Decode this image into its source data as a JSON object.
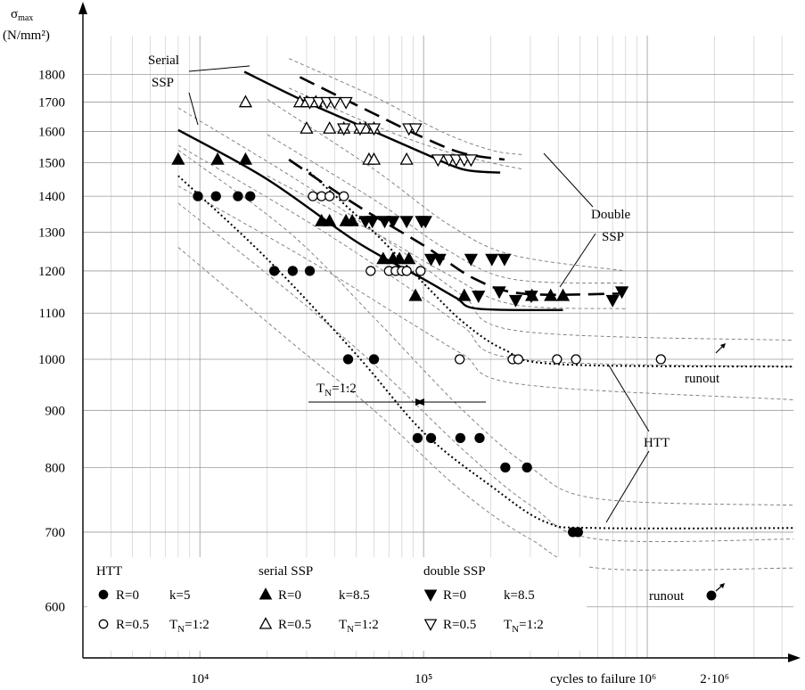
{
  "chart_data": {
    "type": "scatter",
    "y_axis": {
      "label": "σmax",
      "unit": "(N/mm²)",
      "scale": "log",
      "range": [
        540,
        1950
      ],
      "ticks": [
        600,
        700,
        800,
        900,
        1000,
        1100,
        1200,
        1300,
        1400,
        1500,
        1600,
        1700,
        1800
      ]
    },
    "x_axis": {
      "label": "cycles to failure",
      "scale": "log",
      "range": [
        3000,
        4500000
      ],
      "ticks": [
        {
          "value": 10000,
          "label": "10⁴"
        },
        {
          "value": 100000,
          "label": "10⁵"
        },
        {
          "value": 1000000,
          "label": "10⁶"
        },
        {
          "value": 2000000,
          "label": "2·10⁶"
        }
      ]
    },
    "grid": true,
    "series": [
      {
        "group": "HTT",
        "marker": "filled-circle",
        "points": [
          [
            9800,
            1400
          ],
          [
            11800,
            1400
          ],
          [
            14800,
            1400
          ],
          [
            16800,
            1400
          ],
          [
            21500,
            1200
          ],
          [
            26000,
            1200
          ],
          [
            31000,
            1200
          ],
          [
            46000,
            1000
          ],
          [
            60000,
            1000
          ],
          [
            94000,
            850
          ],
          [
            108000,
            850
          ],
          [
            146000,
            850
          ],
          [
            178000,
            850
          ],
          [
            232000,
            800
          ],
          [
            290000,
            800
          ],
          [
            465000,
            700
          ],
          [
            490000,
            700
          ]
        ]
      },
      {
        "group": "HTT",
        "marker": "open-circle",
        "points": [
          [
            32000,
            1400
          ],
          [
            35000,
            1400
          ],
          [
            38000,
            1400
          ],
          [
            44000,
            1400
          ],
          [
            58000,
            1200
          ],
          [
            70000,
            1200
          ],
          [
            75000,
            1200
          ],
          [
            80000,
            1200
          ],
          [
            84000,
            1200
          ],
          [
            97000,
            1200
          ],
          [
            145000,
            1000
          ],
          [
            250000,
            1000
          ],
          [
            265000,
            1000
          ],
          [
            395000,
            1000
          ],
          [
            480000,
            1000
          ],
          [
            1150000,
            1000
          ]
        ]
      },
      {
        "group": "serial SSP",
        "marker": "filled-triangle-up",
        "points": [
          [
            8000,
            1510
          ],
          [
            12000,
            1510
          ],
          [
            16000,
            1510
          ],
          [
            35000,
            1330
          ],
          [
            38000,
            1330
          ],
          [
            45000,
            1330
          ],
          [
            48000,
            1330
          ],
          [
            66000,
            1230
          ],
          [
            73000,
            1230
          ],
          [
            78000,
            1230
          ],
          [
            86000,
            1230
          ],
          [
            92000,
            1140
          ],
          [
            152000,
            1140
          ],
          [
            305000,
            1140
          ],
          [
            370000,
            1140
          ],
          [
            420000,
            1140
          ]
        ]
      },
      {
        "group": "serial SSP",
        "marker": "open-triangle-up",
        "points": [
          [
            16000,
            1700
          ],
          [
            28000,
            1700
          ],
          [
            30000,
            1700
          ],
          [
            33000,
            1700
          ],
          [
            30000,
            1610
          ],
          [
            38000,
            1610
          ],
          [
            44000,
            1610
          ],
          [
            52000,
            1610
          ],
          [
            55000,
            1610
          ],
          [
            60000,
            1610
          ],
          [
            57000,
            1510
          ],
          [
            60000,
            1510
          ],
          [
            84000,
            1510
          ]
        ]
      },
      {
        "group": "double SSP",
        "marker": "filled-triangle-down",
        "points": [
          [
            55000,
            1330
          ],
          [
            59000,
            1330
          ],
          [
            67000,
            1330
          ],
          [
            73000,
            1330
          ],
          [
            84000,
            1330
          ],
          [
            98000,
            1330
          ],
          [
            102000,
            1330
          ],
          [
            108000,
            1230
          ],
          [
            118000,
            1230
          ],
          [
            163000,
            1230
          ],
          [
            202000,
            1230
          ],
          [
            230000,
            1230
          ],
          [
            176000,
            1140
          ],
          [
            218000,
            1150
          ],
          [
            258000,
            1130
          ],
          [
            303000,
            1140
          ],
          [
            700000,
            1130
          ],
          [
            770000,
            1150
          ]
        ]
      },
      {
        "group": "double SSP",
        "marker": "open-triangle-down",
        "points": [
          [
            31000,
            1700
          ],
          [
            34000,
            1700
          ],
          [
            37000,
            1700
          ],
          [
            40000,
            1700
          ],
          [
            45000,
            1700
          ],
          [
            44000,
            1610
          ],
          [
            52000,
            1610
          ],
          [
            60000,
            1610
          ],
          [
            86000,
            1610
          ],
          [
            92000,
            1610
          ],
          [
            116000,
            1510
          ],
          [
            130000,
            1510
          ],
          [
            140000,
            1510
          ],
          [
            152000,
            1510
          ],
          [
            163000,
            1510
          ]
        ]
      }
    ],
    "curves": [
      {
        "name": "serial-ssp-mean",
        "style": "solid",
        "points": [
          [
            8000,
            1605
          ],
          [
            20000,
            1450
          ],
          [
            50000,
            1275
          ],
          [
            100000,
            1180
          ],
          [
            140000,
            1135
          ],
          [
            175000,
            1110
          ],
          [
            420000,
            1107
          ]
        ]
      },
      {
        "name": "serial-ssp-upper",
        "style": "solid",
        "points": [
          [
            15800,
            1810
          ],
          [
            30000,
            1700
          ],
          [
            60000,
            1600
          ],
          [
            100000,
            1530
          ],
          [
            150000,
            1480
          ],
          [
            220000,
            1470
          ]
        ]
      },
      {
        "name": "double-ssp-mean",
        "style": "dashed",
        "points": [
          [
            25000,
            1510
          ],
          [
            50000,
            1375
          ],
          [
            100000,
            1265
          ],
          [
            170000,
            1180
          ],
          [
            280000,
            1145
          ],
          [
            750000,
            1145
          ]
        ]
      },
      {
        "name": "double-ssp-upper",
        "style": "dashed",
        "points": [
          [
            28000,
            1790
          ],
          [
            60000,
            1660
          ],
          [
            100000,
            1580
          ],
          [
            150000,
            1530
          ],
          [
            230000,
            1510
          ]
        ]
      },
      {
        "name": "htt-mean-0.5",
        "style": "dotted",
        "points": [
          [
            30000,
            1480
          ],
          [
            60000,
            1300
          ],
          [
            100000,
            1170
          ],
          [
            150000,
            1080
          ],
          [
            230000,
            1020
          ],
          [
            400000,
            990
          ],
          [
            4500000,
            985
          ]
        ]
      },
      {
        "name": "htt-mean-0",
        "style": "dotted",
        "points": [
          [
            8000,
            1460
          ],
          [
            20000,
            1230
          ],
          [
            50000,
            1010
          ],
          [
            100000,
            860
          ],
          [
            200000,
            770
          ],
          [
            350000,
            715
          ],
          [
            600000,
            706
          ],
          [
            4500000,
            706
          ]
        ]
      }
    ],
    "bands": [
      [
        [
          8000,
          1680
        ],
        [
          30000,
          1430
        ],
        [
          80000,
          1250
        ],
        [
          150000,
          1140
        ],
        [
          270000,
          1060
        ],
        [
          4500000,
          1040
        ]
      ],
      [
        [
          8000,
          1555
        ],
        [
          30000,
          1330
        ],
        [
          80000,
          1170
        ],
        [
          150000,
          1070
        ],
        [
          270000,
          1000
        ],
        [
          4500000,
          985
        ]
      ],
      [
        [
          8000,
          1430
        ],
        [
          30000,
          1230
        ],
        [
          80000,
          1090
        ],
        [
          150000,
          1010
        ],
        [
          270000,
          950
        ],
        [
          4500000,
          920
        ]
      ],
      [
        [
          8000,
          1540
        ],
        [
          25000,
          1300
        ],
        [
          60000,
          1090
        ],
        [
          150000,
          900
        ],
        [
          300000,
          800
        ],
        [
          600000,
          750
        ],
        [
          4500000,
          740
        ]
      ],
      [
        [
          8000,
          1380
        ],
        [
          25000,
          1150
        ],
        [
          60000,
          990
        ],
        [
          150000,
          830
        ],
        [
          300000,
          740
        ],
        [
          600000,
          690
        ],
        [
          4500000,
          690
        ]
      ],
      [
        [
          8000,
          1260
        ],
        [
          25000,
          1040
        ],
        [
          60000,
          900
        ],
        [
          150000,
          760
        ],
        [
          300000,
          690
        ],
        [
          600000,
          650
        ],
        [
          4500000,
          650
        ]
      ],
      [
        [
          20000,
          1710
        ],
        [
          60000,
          1480
        ],
        [
          130000,
          1320
        ],
        [
          250000,
          1240
        ],
        [
          800000,
          1200
        ]
      ],
      [
        [
          20000,
          1590
        ],
        [
          60000,
          1390
        ],
        [
          130000,
          1250
        ],
        [
          250000,
          1180
        ],
        [
          800000,
          1170
        ]
      ],
      [
        [
          20000,
          1460
        ],
        [
          60000,
          1300
        ],
        [
          130000,
          1190
        ],
        [
          250000,
          1120
        ],
        [
          800000,
          1110
        ]
      ],
      [
        [
          25000,
          1860
        ],
        [
          60000,
          1720
        ],
        [
          120000,
          1600
        ],
        [
          200000,
          1540
        ],
        [
          280000,
          1525
        ]
      ],
      [
        [
          25000,
          1750
        ],
        [
          60000,
          1620
        ],
        [
          120000,
          1540
        ],
        [
          200000,
          1500
        ],
        [
          280000,
          1480
        ]
      ]
    ],
    "annotations": {
      "serial": "Serial",
      "ssp1": "SSP",
      "double": "Double",
      "ssp2": "SSP",
      "htt": "HTT",
      "runout": "runout",
      "tn": "TN=1:2"
    },
    "legend": {
      "position": "bottom-left",
      "groups": [
        {
          "title": "HTT",
          "rows": [
            {
              "marker": "filled-circle",
              "text": "R=0",
              "extra": "k=5"
            },
            {
              "marker": "open-circle",
              "text": "R=0.5",
              "extra": "TN=1:2"
            }
          ]
        },
        {
          "title": "serial SSP",
          "rows": [
            {
              "marker": "filled-triangle-up",
              "text": "R=0",
              "extra": "k=8.5"
            },
            {
              "marker": "open-triangle-up",
              "text": "R=0.5",
              "extra": "TN=1:2"
            }
          ]
        },
        {
          "title": "double SSP",
          "rows": [
            {
              "marker": "filled-triangle-down",
              "text": "R=0",
              "extra": "k=8.5"
            },
            {
              "marker": "open-triangle-down",
              "text": "R=0.5",
              "extra": "TN=1:2"
            }
          ]
        }
      ],
      "runout_label": "runout"
    }
  }
}
